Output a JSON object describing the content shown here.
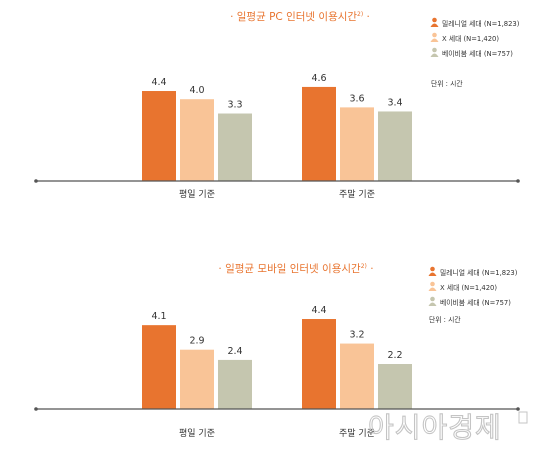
{
  "chart_data": [
    {
      "type": "bar",
      "title": "· 일평균 PC 인터넷 이용시간",
      "title_superscript": "2)",
      "title_suffix": " ·",
      "categories": [
        "평일 기준",
        "주말 기준"
      ],
      "series": [
        {
          "name": "밀레니얼 세대 (N=1,823)",
          "values": [
            4.4,
            4.6
          ]
        },
        {
          "name": "X 세대 (N=1,420)",
          "values": [
            4.0,
            3.6
          ]
        },
        {
          "name": "베이비붐 세대 (N=757)",
          "values": [
            3.3,
            3.4
          ]
        }
      ],
      "value_labels": [
        [
          "4.4",
          "4.6"
        ],
        [
          "4.0",
          "3.6"
        ],
        [
          "3.3",
          "3.4"
        ]
      ],
      "unit": "단위 : 시간",
      "legend_position": "right",
      "grid": false
    },
    {
      "type": "bar",
      "title": "· 일평균 모바일 인터넷 이용시간",
      "title_superscript": "2)",
      "title_suffix": " ·",
      "categories": [
        "평일 기준",
        "주말 기준"
      ],
      "series": [
        {
          "name": "밀레니얼 세대 (N=1,823)",
          "values": [
            4.1,
            4.4
          ]
        },
        {
          "name": "X 세대 (N=1,420)",
          "values": [
            2.9,
            3.2
          ]
        },
        {
          "name": "베이비붐 세대 (N=757)",
          "values": [
            2.4,
            2.2
          ]
        }
      ],
      "value_labels": [
        [
          "4.1",
          "4.4"
        ],
        [
          "2.9",
          "3.2"
        ],
        [
          "2.4",
          "2.2"
        ]
      ],
      "unit": "단위 : 시간",
      "legend_position": "right",
      "grid": false
    }
  ],
  "colors": {
    "millennial": "#e8742f",
    "genx": "#f9c497",
    "boomer": "#c5c6af",
    "axis": "#555555",
    "title": "#e8742f"
  },
  "legend_icons": [
    "person-icon",
    "person-icon",
    "person-icon"
  ],
  "watermark": "아시아경제"
}
